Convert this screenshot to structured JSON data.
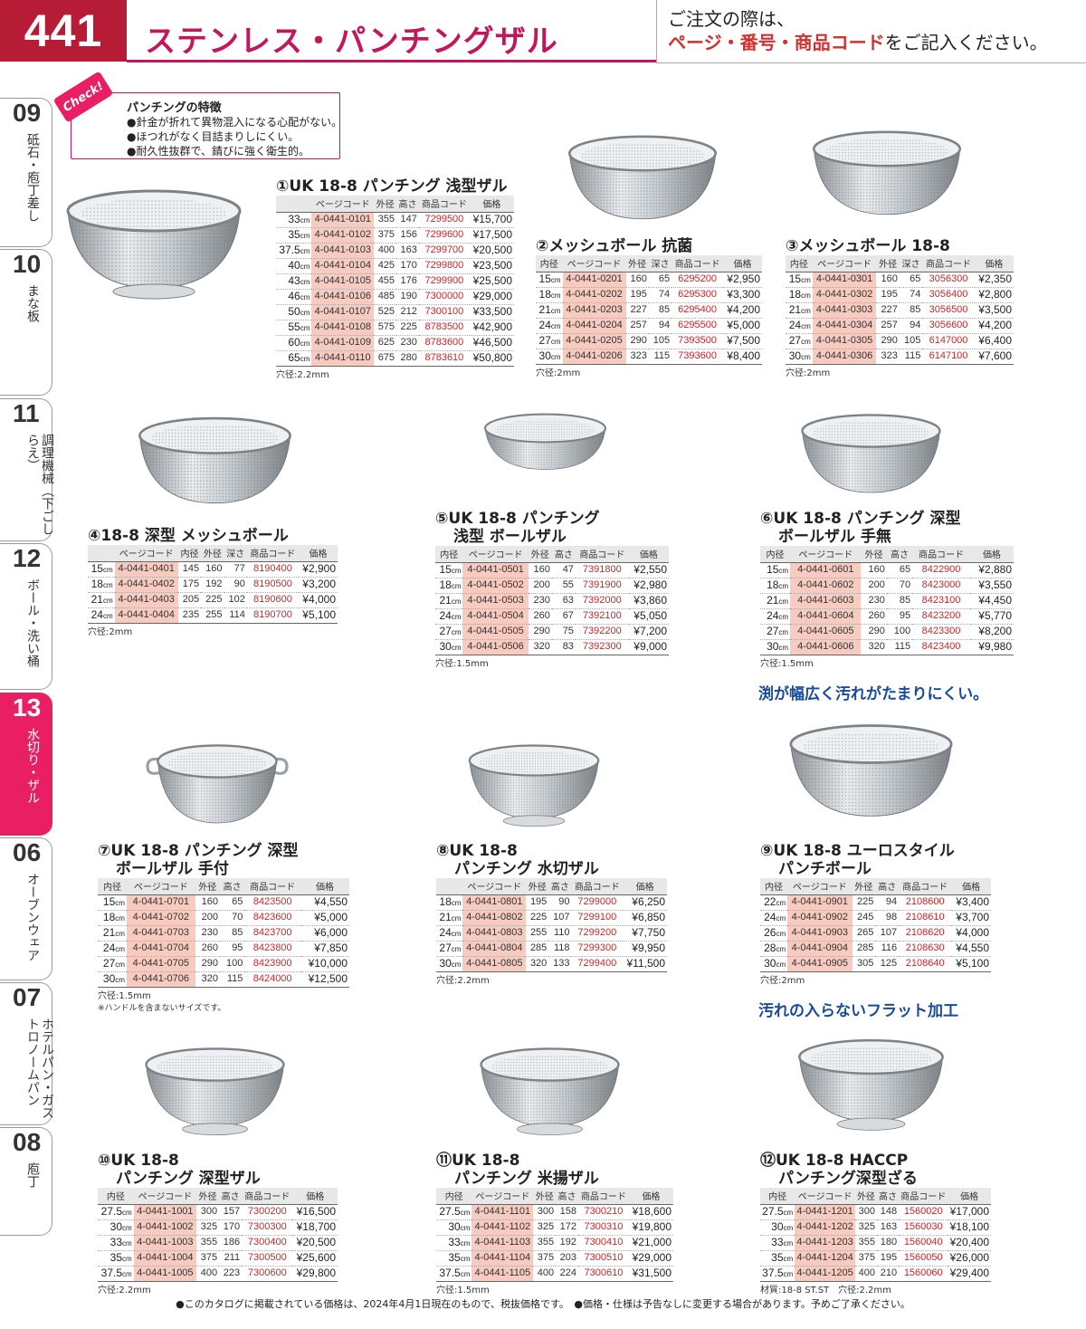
{
  "header": {
    "page_number": "441",
    "title": "ステンレス・パンチングザル",
    "order_note_line1": "ご注文の際は、",
    "order_note_red": "ページ・番号・商品コード",
    "order_note_tail": "をご記入ください。"
  },
  "side_tabs": [
    {
      "num": "09",
      "label": "砥石・庖丁差し",
      "active": false
    },
    {
      "num": "10",
      "label": "まな板",
      "active": false
    },
    {
      "num": "11",
      "label": "調理機械（下ごしらえ）",
      "active": false
    },
    {
      "num": "12",
      "label": "ボール・洗い桶",
      "active": false
    },
    {
      "num": "13",
      "label": "水切り・ザル",
      "active": true
    },
    {
      "num": "06",
      "label": "オーブンウェア",
      "active": false
    },
    {
      "num": "07",
      "label": "ホテルパン・ガストロノームパン",
      "active": false
    },
    {
      "num": "08",
      "label": "庖丁",
      "active": false
    }
  ],
  "check": {
    "badge": "Check!",
    "title": "パンチングの特徴",
    "lines": [
      "●針金が折れて異物混入になる心配がない。",
      "●ほつれがなく目詰まりしにくい。",
      "●耐久性抜群で、錆びに強く衛生的。"
    ]
  },
  "taglines": {
    "t9": "渕が幅広く汚れがたまりにくい。",
    "t12": "汚れの入らないフラット加工"
  },
  "products": [
    {
      "title1": "①UK 18-8 パンチング 浅型ザル",
      "title2": "",
      "headers": [
        "",
        "ページコード",
        "外径",
        "高さ",
        "商品コード",
        "価格"
      ],
      "note": "穴径:2.2mm",
      "rows": [
        [
          "33",
          "4-0441-0101",
          "355",
          "147",
          "7299500",
          "¥15,700"
        ],
        [
          "35",
          "4-0441-0102",
          "375",
          "156",
          "7299600",
          "¥17,500"
        ],
        [
          "37.5",
          "4-0441-0103",
          "400",
          "163",
          "7299700",
          "¥20,500"
        ],
        [
          "40",
          "4-0441-0104",
          "425",
          "170",
          "7299800",
          "¥23,500"
        ],
        [
          "43",
          "4-0441-0105",
          "455",
          "176",
          "7299900",
          "¥25,500"
        ],
        [
          "46",
          "4-0441-0106",
          "485",
          "190",
          "7300000",
          "¥29,000"
        ],
        [
          "50",
          "4-0441-0107",
          "525",
          "212",
          "7300100",
          "¥33,500"
        ],
        [
          "55",
          "4-0441-0108",
          "575",
          "225",
          "8783500",
          "¥42,900"
        ],
        [
          "60",
          "4-0441-0109",
          "625",
          "230",
          "8783600",
          "¥46,500"
        ],
        [
          "65",
          "4-0441-0110",
          "675",
          "280",
          "8783610",
          "¥50,800"
        ]
      ]
    },
    {
      "title1": "②メッシュボール 抗菌",
      "title2": "",
      "headers": [
        "内径",
        "ページコード",
        "外径",
        "深さ",
        "商品コード",
        "価格"
      ],
      "note": "穴径:2mm",
      "rows": [
        [
          "15",
          "4-0441-0201",
          "160",
          "65",
          "6295200",
          "¥2,950"
        ],
        [
          "18",
          "4-0441-0202",
          "195",
          "74",
          "6295300",
          "¥3,300"
        ],
        [
          "21",
          "4-0441-0203",
          "227",
          "85",
          "6295400",
          "¥4,200"
        ],
        [
          "24",
          "4-0441-0204",
          "257",
          "94",
          "6295500",
          "¥5,000"
        ],
        [
          "27",
          "4-0441-0205",
          "290",
          "105",
          "7393500",
          "¥7,500"
        ],
        [
          "30",
          "4-0441-0206",
          "323",
          "115",
          "7393600",
          "¥8,400"
        ]
      ]
    },
    {
      "title1": "③メッシュボール 18-8",
      "title2": "",
      "headers": [
        "内径",
        "ページコード",
        "外径",
        "深さ",
        "商品コード",
        "価格"
      ],
      "note": "穴径:2mm",
      "rows": [
        [
          "15",
          "4-0441-0301",
          "160",
          "65",
          "3056300",
          "¥2,350"
        ],
        [
          "18",
          "4-0441-0302",
          "195",
          "74",
          "3056400",
          "¥2,800"
        ],
        [
          "21",
          "4-0441-0303",
          "227",
          "85",
          "3056500",
          "¥3,500"
        ],
        [
          "24",
          "4-0441-0304",
          "257",
          "94",
          "3056600",
          "¥4,200"
        ],
        [
          "27",
          "4-0441-0305",
          "290",
          "105",
          "6147000",
          "¥6,400"
        ],
        [
          "30",
          "4-0441-0306",
          "323",
          "115",
          "6147100",
          "¥7,600"
        ]
      ]
    },
    {
      "title1": "④18-8 深型 メッシュボール",
      "title2": "",
      "headers": [
        "",
        "ページコード",
        "内径",
        "外径",
        "深さ",
        "商品コード",
        "価格"
      ],
      "note": "穴径:2mm",
      "rows": [
        [
          "15",
          "4-0441-0401",
          "145",
          "160",
          "77",
          "8190400",
          "¥2,900"
        ],
        [
          "18",
          "4-0441-0402",
          "175",
          "192",
          "90",
          "8190500",
          "¥3,200"
        ],
        [
          "21",
          "4-0441-0403",
          "205",
          "225",
          "102",
          "8190600",
          "¥4,000"
        ],
        [
          "24",
          "4-0441-0404",
          "235",
          "255",
          "114",
          "8190700",
          "¥5,100"
        ]
      ]
    },
    {
      "title1": "⑤UK 18-8 パンチング",
      "title2": "浅型 ボールザル",
      "headers": [
        "内径",
        "ページコード",
        "外径",
        "高さ",
        "商品コード",
        "価格"
      ],
      "note": "穴径:1.5mm",
      "rows": [
        [
          "15",
          "4-0441-0501",
          "160",
          "47",
          "7391800",
          "¥2,550"
        ],
        [
          "18",
          "4-0441-0502",
          "200",
          "55",
          "7391900",
          "¥2,980"
        ],
        [
          "21",
          "4-0441-0503",
          "230",
          "63",
          "7392000",
          "¥3,860"
        ],
        [
          "24",
          "4-0441-0504",
          "260",
          "67",
          "7392100",
          "¥5,050"
        ],
        [
          "27",
          "4-0441-0505",
          "290",
          "75",
          "7392200",
          "¥7,200"
        ],
        [
          "30",
          "4-0441-0506",
          "320",
          "83",
          "7392300",
          "¥9,000"
        ]
      ]
    },
    {
      "title1": "⑥UK 18-8 パンチング 深型",
      "title2": "ボールザル 手無",
      "headers": [
        "内径",
        "ページコード",
        "外径",
        "高さ",
        "商品コード",
        "価格"
      ],
      "note": "穴径:1.5mm",
      "rows": [
        [
          "15",
          "4-0441-0601",
          "160",
          "65",
          "8422900",
          "¥2,880"
        ],
        [
          "18",
          "4-0441-0602",
          "200",
          "70",
          "8423000",
          "¥3,550"
        ],
        [
          "21",
          "4-0441-0603",
          "230",
          "85",
          "8423100",
          "¥4,450"
        ],
        [
          "24",
          "4-0441-0604",
          "260",
          "95",
          "8423200",
          "¥5,770"
        ],
        [
          "27",
          "4-0441-0605",
          "290",
          "100",
          "8423300",
          "¥8,200"
        ],
        [
          "30",
          "4-0441-0606",
          "320",
          "115",
          "8423400",
          "¥9,980"
        ]
      ]
    },
    {
      "title1": "⑦UK 18-8 パンチング 深型",
      "title2": "ボールザル 手付",
      "headers": [
        "内径",
        "ページコード",
        "外径",
        "高さ",
        "商品コード",
        "価格"
      ],
      "note": "穴径:1.5mm",
      "note2": "※ハンドルを含まないサイズです。",
      "rows": [
        [
          "15",
          "4-0441-0701",
          "160",
          "65",
          "8423500",
          "¥4,550"
        ],
        [
          "18",
          "4-0441-0702",
          "200",
          "70",
          "8423600",
          "¥5,000"
        ],
        [
          "21",
          "4-0441-0703",
          "230",
          "85",
          "8423700",
          "¥6,000"
        ],
        [
          "24",
          "4-0441-0704",
          "260",
          "95",
          "8423800",
          "¥7,850"
        ],
        [
          "27",
          "4-0441-0705",
          "290",
          "100",
          "8423900",
          "¥10,000"
        ],
        [
          "30",
          "4-0441-0706",
          "320",
          "115",
          "8424000",
          "¥12,500"
        ]
      ]
    },
    {
      "title1": "⑧UK 18-8",
      "title2": "パンチング 水切ザル",
      "headers": [
        "",
        "ページコード",
        "外径",
        "高さ",
        "商品コード",
        "価格"
      ],
      "note": "穴径:2.2mm",
      "rows": [
        [
          "18",
          "4-0441-0801",
          "195",
          "90",
          "7299000",
          "¥6,250"
        ],
        [
          "21",
          "4-0441-0802",
          "225",
          "107",
          "7299100",
          "¥6,850"
        ],
        [
          "24",
          "4-0441-0803",
          "255",
          "110",
          "7299200",
          "¥7,750"
        ],
        [
          "27",
          "4-0441-0804",
          "285",
          "118",
          "7299300",
          "¥9,950"
        ],
        [
          "30",
          "4-0441-0805",
          "320",
          "133",
          "7299400",
          "¥11,500"
        ]
      ]
    },
    {
      "title1": "⑨UK 18-8 ユーロスタイル",
      "title2": "パンチボール",
      "headers": [
        "内径",
        "ページコード",
        "外径",
        "高さ",
        "商品コード",
        "価格"
      ],
      "note": "穴径:2mm",
      "rows": [
        [
          "22",
          "4-0441-0901",
          "225",
          "94",
          "2108600",
          "¥3,400"
        ],
        [
          "24",
          "4-0441-0902",
          "245",
          "98",
          "2108610",
          "¥3,700"
        ],
        [
          "26",
          "4-0441-0903",
          "265",
          "107",
          "2108620",
          "¥4,000"
        ],
        [
          "28",
          "4-0441-0904",
          "285",
          "116",
          "2108630",
          "¥4,550"
        ],
        [
          "30",
          "4-0441-0905",
          "305",
          "125",
          "2108640",
          "¥5,100"
        ]
      ]
    },
    {
      "title1": "⑩UK 18-8",
      "title2": "パンチング 深型ザル",
      "headers": [
        "内径",
        "ページコード",
        "外径",
        "高さ",
        "商品コード",
        "価格"
      ],
      "note": "穴径:2.2mm",
      "rows": [
        [
          "27.5",
          "4-0441-1001",
          "300",
          "157",
          "7300200",
          "¥16,500"
        ],
        [
          "30",
          "4-0441-1002",
          "325",
          "170",
          "7300300",
          "¥18,700"
        ],
        [
          "33",
          "4-0441-1003",
          "355",
          "186",
          "7300400",
          "¥20,500"
        ],
        [
          "35",
          "4-0441-1004",
          "375",
          "211",
          "7300500",
          "¥25,600"
        ],
        [
          "37.5",
          "4-0441-1005",
          "400",
          "223",
          "7300600",
          "¥29,800"
        ]
      ]
    },
    {
      "title1": "⑪UK 18-8",
      "title2": "パンチング 米揚ザル",
      "headers": [
        "内径",
        "ページコード",
        "外径",
        "高さ",
        "商品コード",
        "価格"
      ],
      "note": "穴径:1.5mm",
      "rows": [
        [
          "27.5",
          "4-0441-1101",
          "300",
          "158",
          "7300210",
          "¥18,600"
        ],
        [
          "30",
          "4-0441-1102",
          "325",
          "172",
          "7300310",
          "¥19,800"
        ],
        [
          "33",
          "4-0441-1103",
          "355",
          "192",
          "7300410",
          "¥21,000"
        ],
        [
          "35",
          "4-0441-1104",
          "375",
          "203",
          "7300510",
          "¥29,000"
        ],
        [
          "37.5",
          "4-0441-1105",
          "400",
          "224",
          "7300610",
          "¥31,500"
        ]
      ]
    },
    {
      "title1": "⑫UK 18-8 HACCP",
      "title2": "パンチング深型ざる",
      "headers": [
        "内径",
        "ページコード",
        "外径",
        "高さ",
        "商品コード",
        "価格"
      ],
      "note": "材質:18-8 ST.ST　穴径:2.2mm",
      "rows": [
        [
          "27.5",
          "4-0441-1201",
          "300",
          "148",
          "1560020",
          "¥17,000"
        ],
        [
          "30",
          "4-0441-1202",
          "325",
          "163",
          "1560030",
          "¥18,100"
        ],
        [
          "33",
          "4-0441-1203",
          "355",
          "180",
          "1560040",
          "¥20,400"
        ],
        [
          "35",
          "4-0441-1204",
          "375",
          "195",
          "1560050",
          "¥26,000"
        ],
        [
          "37.5",
          "4-0441-1205",
          "400",
          "210",
          "1560060",
          "¥29,400"
        ]
      ]
    }
  ],
  "unit": "cm",
  "footer": "●このカタログに掲載されている価格は、2024年4月1日現在のもので、税抜価格です。　●価格・仕様は予告なしに変更する場合があります。予めご了承ください。"
}
